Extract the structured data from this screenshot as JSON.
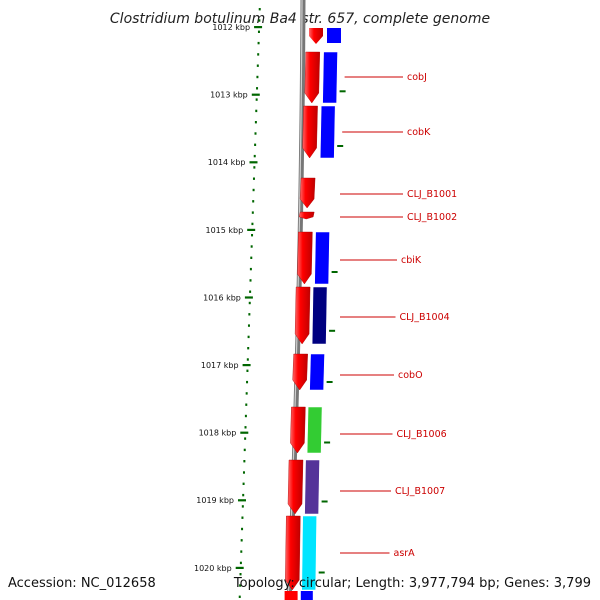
{
  "title": "Clostridium botulinum Ba4 str. 657, complete genome",
  "footer": {
    "accession": "Accession: NC_012658",
    "summary": "Topology: circular; Length: 3,977,794 bp; Genes: 3,799"
  },
  "scale": {
    "ticks": [
      "1012 kbp",
      "1013 kbp",
      "1014 kbp",
      "1015 kbp",
      "1016 kbp",
      "1017 kbp",
      "1018 kbp",
      "1019 kbp",
      "1020 kbp"
    ]
  },
  "genes": [
    {
      "name": "cobJ",
      "color": "#0000ff"
    },
    {
      "name": "cobK",
      "color": "#0000ff"
    },
    {
      "name": "CLJ_B1001",
      "color": ""
    },
    {
      "name": "CLJ_B1002",
      "color": ""
    },
    {
      "name": "cbiK",
      "color": "#0000ff"
    },
    {
      "name": "CLJ_B1004",
      "color": "#000080"
    },
    {
      "name": "cobO",
      "color": "#0000ff"
    },
    {
      "name": "CLJ_B1006",
      "color": "#33cc33"
    },
    {
      "name": "CLJ_B1007",
      "color": "#553399"
    },
    {
      "name": "asrA",
      "color": "#00e5ff"
    }
  ],
  "colors": {
    "cds": "#ff0000",
    "backbone": "#777777",
    "tick": "#006600",
    "label": "#cc0000"
  }
}
